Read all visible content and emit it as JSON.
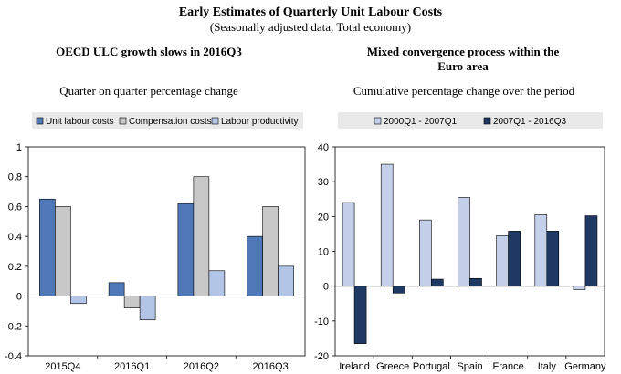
{
  "header": {
    "title": "Early Estimates of Quarterly Unit Labour Costs",
    "subtitle": "(Seasonally adjusted data, Total economy)"
  },
  "colors": {
    "dark_blue": "#4f78b8",
    "grey": "#c8c8c8",
    "light_blue": "#b3c5e6",
    "pale_blue": "#c4d0ea",
    "navy": "#1e3a64",
    "legend_bg": "#e9e9e9",
    "plot_bg": "#ffffff"
  },
  "chart_data": [
    {
      "type": "bar",
      "title": "OECD ULC growth slows in 2016Q3",
      "ylabel": "Quarter on quarter percentage change",
      "xlabel": "",
      "categories": [
        "2015Q4",
        "2016Q1",
        "2016Q2",
        "2016Q3"
      ],
      "series": [
        {
          "name": "Unit labour costs",
          "values": [
            0.65,
            0.09,
            0.62,
            0.4
          ]
        },
        {
          "name": "Compensation costs",
          "values": [
            0.6,
            -0.08,
            0.8,
            0.6
          ]
        },
        {
          "name": "Labour productivity",
          "values": [
            -0.05,
            -0.16,
            0.17,
            0.2
          ]
        }
      ],
      "ylim": [
        -0.4,
        1
      ],
      "yticks": [
        1,
        0.8,
        0.6,
        0.4,
        0.2,
        0,
        -0.2,
        -0.4
      ],
      "ytick_labels": [
        "1",
        "0.8",
        "0.6",
        "0.4",
        "0.2",
        "0",
        "-0.2",
        "-0.4"
      ],
      "legend": "top"
    },
    {
      "type": "bar",
      "title": "Mixed convergence process within the Euro area",
      "title_lines": [
        "Mixed convergence process within the",
        "Euro area"
      ],
      "ylabel": "Cumulative percentage change over the period",
      "xlabel": "",
      "categories": [
        "Ireland",
        "Greece",
        "Portugal",
        "Spain",
        "France",
        "Italy",
        "Germany"
      ],
      "series": [
        {
          "name": "2000Q1 - 2007Q1",
          "values": [
            24,
            35,
            19,
            25.5,
            14.5,
            20.5,
            -1
          ]
        },
        {
          "name": "2007Q1 - 2016Q3",
          "values": [
            -16.5,
            -2,
            2,
            2.2,
            15.8,
            15.8,
            20.2
          ]
        }
      ],
      "ylim": [
        -20,
        40
      ],
      "yticks": [
        40,
        30,
        20,
        10,
        0,
        -10,
        -20
      ],
      "ytick_labels": [
        "40",
        "30",
        "20",
        "10",
        "0",
        "-10",
        "-20"
      ],
      "legend": "top"
    }
  ]
}
